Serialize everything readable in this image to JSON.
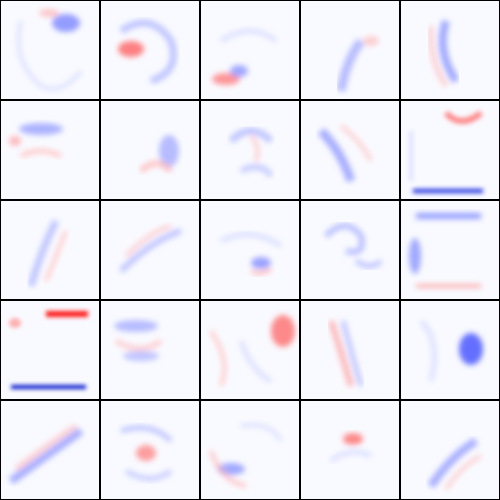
{
  "title": "",
  "colors": {
    "background": "#f9faff",
    "grid_line": "#000000",
    "positive": "#ff2a2a",
    "negative": "#2b3bff"
  },
  "grid": {
    "rows": 5,
    "cols": 5
  },
  "tiles": [
    {
      "r": 0,
      "c": 0,
      "name": "filter-r1-c1"
    },
    {
      "r": 0,
      "c": 1,
      "name": "filter-r1-c2"
    },
    {
      "r": 0,
      "c": 2,
      "name": "filter-r1-c3"
    },
    {
      "r": 0,
      "c": 3,
      "name": "filter-r1-c4"
    },
    {
      "r": 0,
      "c": 4,
      "name": "filter-r1-c5"
    },
    {
      "r": 1,
      "c": 0,
      "name": "filter-r2-c1"
    },
    {
      "r": 1,
      "c": 1,
      "name": "filter-r2-c2"
    },
    {
      "r": 1,
      "c": 2,
      "name": "filter-r2-c3"
    },
    {
      "r": 1,
      "c": 3,
      "name": "filter-r2-c4"
    },
    {
      "r": 1,
      "c": 4,
      "name": "filter-r2-c5"
    },
    {
      "r": 2,
      "c": 0,
      "name": "filter-r3-c1"
    },
    {
      "r": 2,
      "c": 1,
      "name": "filter-r3-c2"
    },
    {
      "r": 2,
      "c": 2,
      "name": "filter-r3-c3"
    },
    {
      "r": 2,
      "c": 3,
      "name": "filter-r3-c4"
    },
    {
      "r": 2,
      "c": 4,
      "name": "filter-r3-c5"
    },
    {
      "r": 3,
      "c": 0,
      "name": "filter-r4-c1"
    },
    {
      "r": 3,
      "c": 1,
      "name": "filter-r4-c2"
    },
    {
      "r": 3,
      "c": 2,
      "name": "filter-r4-c3"
    },
    {
      "r": 3,
      "c": 3,
      "name": "filter-r4-c4"
    },
    {
      "r": 3,
      "c": 4,
      "name": "filter-r4-c5"
    },
    {
      "r": 4,
      "c": 0,
      "name": "filter-r5-c1"
    },
    {
      "r": 4,
      "c": 1,
      "name": "filter-r5-c2"
    },
    {
      "r": 4,
      "c": 2,
      "name": "filter-r5-c3"
    },
    {
      "r": 4,
      "c": 3,
      "name": "filter-r5-c4"
    },
    {
      "r": 4,
      "c": 4,
      "name": "filter-r5-c5"
    }
  ]
}
